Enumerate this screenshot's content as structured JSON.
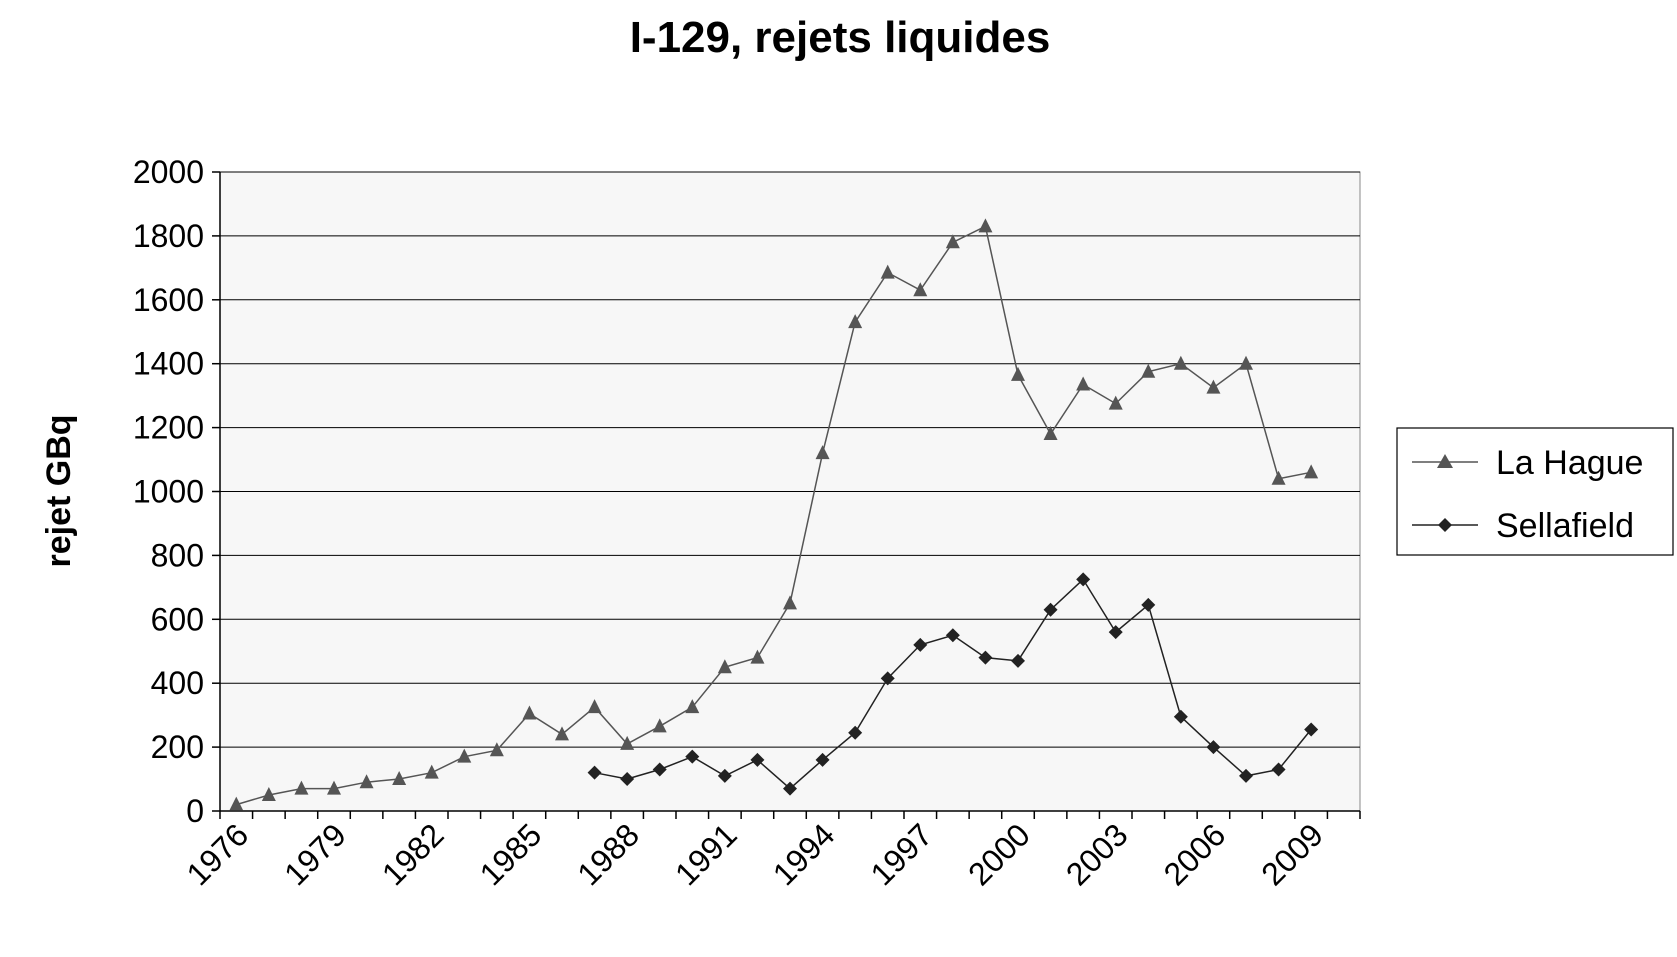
{
  "chart_data": {
    "type": "line",
    "title": "I-129, rejets liquides",
    "xlabel": "",
    "ylabel": "rejet GBq",
    "ylim": [
      0,
      2000
    ],
    "yticks": [
      "0",
      "200",
      "400",
      "600",
      "800",
      "1000",
      "1200",
      "1400",
      "1600",
      "1800",
      "2000"
    ],
    "xlim": [
      1976,
      2010
    ],
    "xticks": [
      "1976",
      "1979",
      "1982",
      "1985",
      "1988",
      "1991",
      "1994",
      "1997",
      "2000",
      "2003",
      "2006",
      "2009"
    ],
    "grid": true,
    "legend_position": "right",
    "series": [
      {
        "name": "La Hague",
        "marker": "triangle",
        "color": "#555555",
        "x": [
          1976,
          1977,
          1978,
          1979,
          1980,
          1981,
          1982,
          1983,
          1984,
          1985,
          1986,
          1987,
          1988,
          1989,
          1990,
          1991,
          1992,
          1993,
          1994,
          1995,
          1996,
          1997,
          1998,
          1999,
          2000,
          2001,
          2002,
          2003,
          2004,
          2005,
          2006,
          2007,
          2008,
          2009,
          2010
        ],
        "values": [
          20,
          50,
          70,
          70,
          90,
          100,
          120,
          170,
          190,
          305,
          240,
          325,
          210,
          265,
          325,
          450,
          480,
          650,
          1120,
          1530,
          1685,
          1630,
          1780,
          1830,
          1365,
          1180,
          1335,
          1275,
          1375,
          1400,
          1325,
          1400,
          1040,
          1060,
          null
        ]
      },
      {
        "name": "Sellafield",
        "marker": "diamond",
        "color": "#222222",
        "x": [
          1987,
          1988,
          1989,
          1990,
          1991,
          1992,
          1993,
          1994,
          1995,
          1996,
          1997,
          1998,
          1999,
          2000,
          2001,
          2002,
          2003,
          2004,
          2005,
          2006,
          2007,
          2008,
          2009
        ],
        "values": [
          120,
          100,
          130,
          170,
          110,
          160,
          70,
          160,
          245,
          415,
          520,
          550,
          480,
          470,
          630,
          725,
          560,
          645,
          295,
          200,
          110,
          130,
          255
        ]
      }
    ]
  }
}
